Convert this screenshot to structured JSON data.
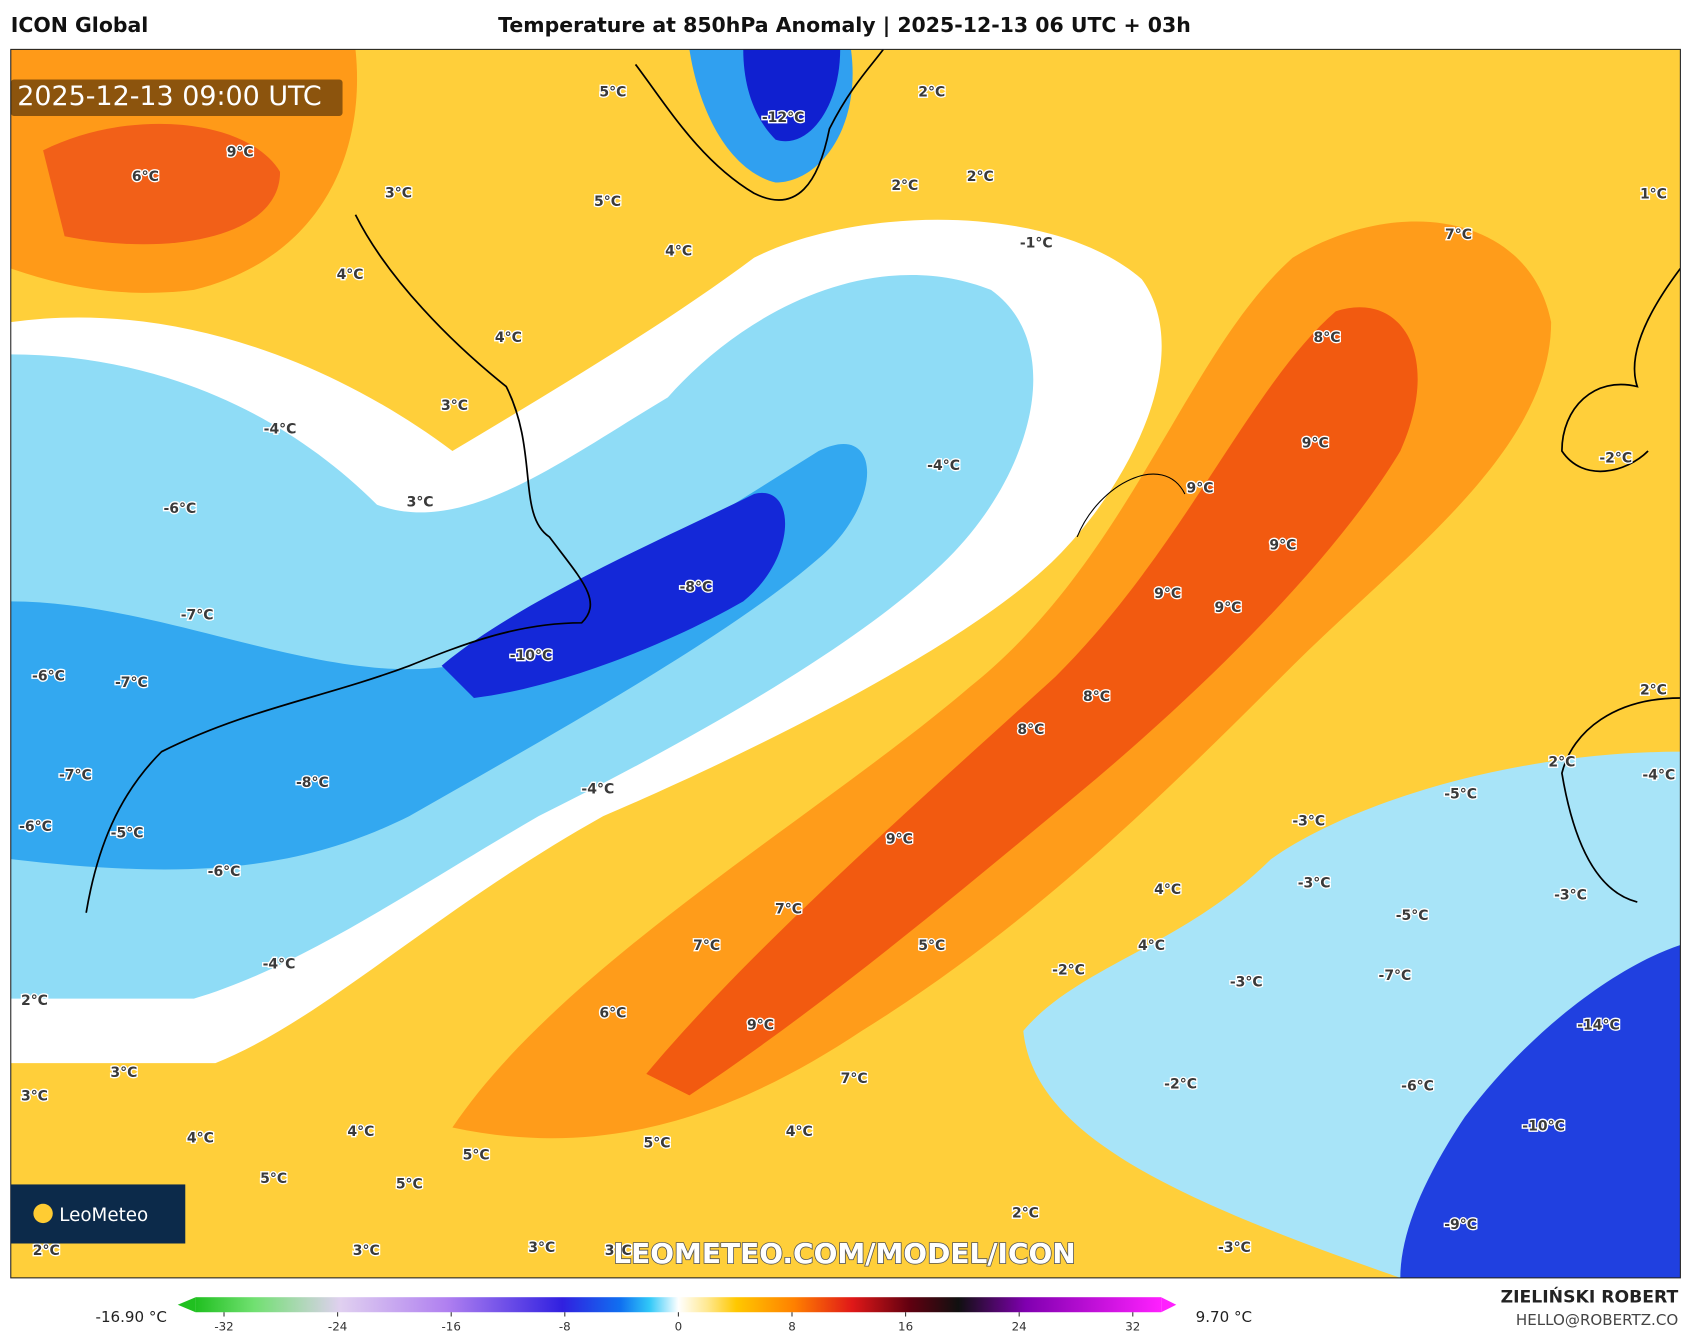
{
  "header": {
    "model": "ICON Global",
    "title": "Temperature at 850hPa Anomaly | 2025-12-13 06 UTC + 03h"
  },
  "map": {
    "valid_time": "2025-12-13 09:00 UTC",
    "watermark": "LEOMETEO.COM/MODEL/ICON",
    "logo": "LeoMeteo",
    "labels": [
      "9°C",
      "6°C",
      "5°C",
      "-12°C",
      "2°C",
      "3°C",
      "5°C",
      "2°C",
      "2°C",
      "1°C",
      "4°C",
      "-1°C",
      "7°C",
      "4°C",
      "4°C",
      "8°C",
      "3°C",
      "-4°C",
      "9°C",
      "-4°C",
      "-2°C",
      "9°C",
      "3°C",
      "-6°C",
      "9°C",
      "-8°C",
      "9°C",
      "9°C",
      "-7°C",
      "-10°C",
      "-6°C",
      "-7°C",
      "2°C",
      "8°C",
      "8°C",
      "2°C",
      "-7°C",
      "-4°C",
      "-8°C",
      "-4°C",
      "-5°C",
      "-6°C",
      "-5°C",
      "-3°C",
      "9°C",
      "-6°C",
      "-3°C",
      "4°C",
      "-3°C",
      "7°C",
      "-5°C",
      "7°C",
      "5°C",
      "4°C",
      "-4°C",
      "-2°C",
      "-3°C",
      "-7°C",
      "2°C",
      "6°C",
      "9°C",
      "-14°C",
      "3°C",
      "7°C",
      "-2°C",
      "-6°C",
      "3°C",
      "-10°C",
      "4°C",
      "4°C",
      "4°C",
      "5°C",
      "5°C",
      "5°C",
      "5°C",
      "2°C",
      "-9°C",
      "2°C",
      "3°C",
      "3°C",
      "3°C",
      "-3°C"
    ]
  },
  "colorbar": {
    "min_label": "-16.90 °C",
    "max_label": "9.70 °C",
    "lim": [
      -34,
      34
    ],
    "ticks": [
      -32,
      -24,
      -16,
      -8,
      0,
      8,
      16,
      24,
      32
    ]
  },
  "footer": {
    "author": "ZIELIŃSKI ROBERT",
    "email": "HELLO@ROBERTZ.CO"
  }
}
